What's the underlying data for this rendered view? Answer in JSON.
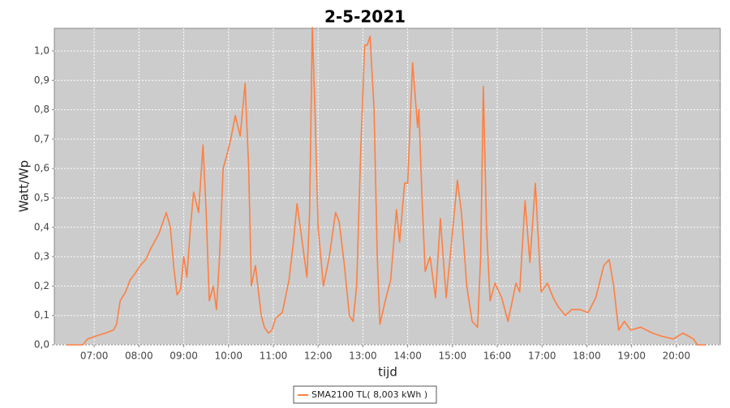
{
  "chart_data": {
    "type": "line",
    "title": "2-5-2021",
    "xlabel": "tijd",
    "ylabel": "Watt/Wp",
    "xlim": [
      6.11,
      20.98
    ],
    "ylim": [
      0,
      1.077
    ],
    "xticks": [
      {
        "value": 7,
        "label": "07:00"
      },
      {
        "value": 8,
        "label": "08:00"
      },
      {
        "value": 9,
        "label": "09:00"
      },
      {
        "value": 10,
        "label": "10:00"
      },
      {
        "value": 11,
        "label": "11:00"
      },
      {
        "value": 12,
        "label": "12:00"
      },
      {
        "value": 13,
        "label": "13:00"
      },
      {
        "value": 14,
        "label": "14:00"
      },
      {
        "value": 15,
        "label": "15:00"
      },
      {
        "value": 16,
        "label": "16:00"
      },
      {
        "value": 17,
        "label": "17:00"
      },
      {
        "value": 18,
        "label": "18:00"
      },
      {
        "value": 19,
        "label": "19:00"
      },
      {
        "value": 20,
        "label": "20:00"
      }
    ],
    "yticks": [
      {
        "value": 0,
        "label": "0,0"
      },
      {
        "value": 0.1,
        "label": "0,1"
      },
      {
        "value": 0.2,
        "label": "0,2"
      },
      {
        "value": 0.3,
        "label": "0,3"
      },
      {
        "value": 0.4,
        "label": "0,4"
      },
      {
        "value": 0.5,
        "label": "0,5"
      },
      {
        "value": 0.6,
        "label": "0,6"
      },
      {
        "value": 0.7,
        "label": "0,7"
      },
      {
        "value": 0.8,
        "label": "0,8"
      },
      {
        "value": 0.9,
        "label": "0,9"
      },
      {
        "value": 1.0,
        "label": "1,0"
      }
    ],
    "grid": true,
    "x": [
      6.38,
      6.75,
      6.85,
      7.04,
      7.25,
      7.43,
      7.5,
      7.58,
      7.7,
      7.8,
      7.9,
      8.03,
      8.15,
      8.27,
      8.38,
      8.45,
      8.61,
      8.7,
      8.78,
      8.85,
      8.93,
      9.0,
      9.07,
      9.15,
      9.22,
      9.33,
      9.43,
      9.5,
      9.57,
      9.66,
      9.73,
      9.8,
      9.88,
      9.97,
      10.05,
      10.15,
      10.26,
      10.37,
      10.45,
      10.51,
      10.6,
      10.73,
      10.8,
      10.89,
      10.97,
      11.05,
      11.2,
      11.35,
      11.45,
      11.53,
      11.62,
      11.75,
      11.81,
      11.87,
      11.93,
      12.0,
      12.12,
      12.25,
      12.39,
      12.47,
      12.58,
      12.7,
      12.78,
      12.86,
      12.95,
      13.04,
      13.1,
      13.16,
      13.25,
      13.32,
      13.38,
      13.5,
      13.62,
      13.75,
      13.82,
      13.93,
      14.0,
      14.11,
      14.18,
      14.22,
      14.25,
      14.32,
      14.39,
      14.5,
      14.62,
      14.73,
      14.86,
      14.98,
      15.11,
      15.2,
      15.32,
      15.44,
      15.56,
      15.63,
      15.69,
      15.76,
      15.84,
      15.95,
      16.1,
      16.24,
      16.42,
      16.5,
      16.62,
      16.73,
      16.85,
      16.98,
      17.12,
      17.25,
      17.36,
      17.52,
      17.66,
      17.85,
      18.03,
      18.2,
      18.38,
      18.5,
      18.6,
      18.71,
      18.84,
      18.98,
      19.2,
      19.47,
      19.66,
      19.93,
      20.15,
      20.38,
      20.47,
      20.65
    ],
    "series": [
      {
        "name": "SMA2100 TL( 8,003 kWh )",
        "color": "#ff7f40",
        "values": [
          0,
          0,
          0.02,
          0.03,
          0.04,
          0.05,
          0.07,
          0.15,
          0.18,
          0.22,
          0.24,
          0.27,
          0.29,
          0.33,
          0.36,
          0.38,
          0.45,
          0.4,
          0.26,
          0.17,
          0.19,
          0.3,
          0.23,
          0.4,
          0.52,
          0.45,
          0.68,
          0.45,
          0.15,
          0.2,
          0.12,
          0.3,
          0.6,
          0.65,
          0.7,
          0.78,
          0.71,
          0.89,
          0.6,
          0.2,
          0.27,
          0.1,
          0.06,
          0.04,
          0.05,
          0.09,
          0.11,
          0.22,
          0.35,
          0.48,
          0.38,
          0.23,
          0.45,
          1.08,
          0.8,
          0.4,
          0.2,
          0.3,
          0.45,
          0.42,
          0.28,
          0.1,
          0.08,
          0.2,
          0.65,
          1.02,
          1.02,
          1.05,
          0.8,
          0.3,
          0.07,
          0.15,
          0.22,
          0.46,
          0.35,
          0.55,
          0.55,
          0.96,
          0.82,
          0.74,
          0.8,
          0.5,
          0.25,
          0.3,
          0.16,
          0.43,
          0.16,
          0.35,
          0.56,
          0.45,
          0.2,
          0.08,
          0.06,
          0.3,
          0.88,
          0.4,
          0.15,
          0.21,
          0.16,
          0.08,
          0.21,
          0.18,
          0.49,
          0.28,
          0.55,
          0.18,
          0.21,
          0.16,
          0.13,
          0.1,
          0.12,
          0.12,
          0.11,
          0.16,
          0.27,
          0.29,
          0.2,
          0.05,
          0.08,
          0.05,
          0.06,
          0.04,
          0.03,
          0.02,
          0.04,
          0.02,
          0,
          0
        ]
      }
    ],
    "legend": "bottom"
  }
}
